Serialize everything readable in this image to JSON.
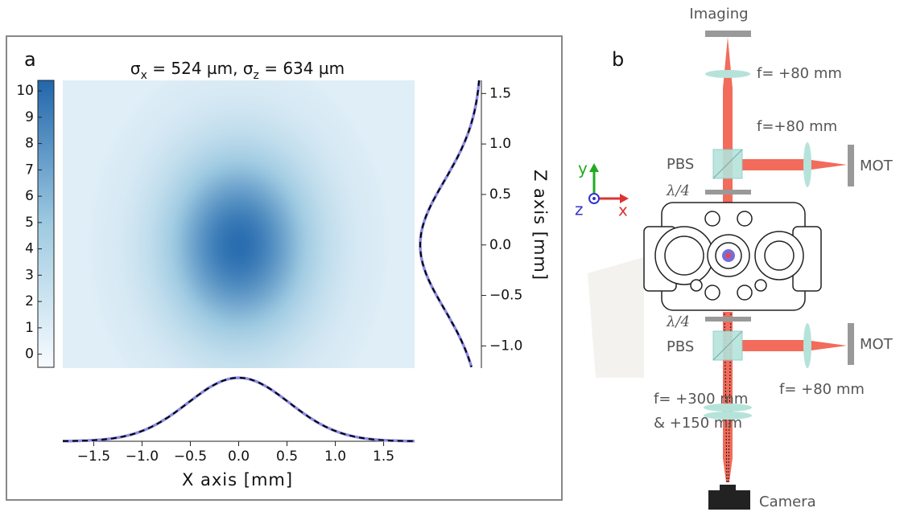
{
  "chart_data": [
    {
      "type": "heatmap",
      "panel_label": "a",
      "title": [
        "σ",
        "x",
        " = 524 µm, σ",
        "z",
        " = 634 µm"
      ],
      "sigma_x": 0.524,
      "sigma_z": 0.634,
      "center_x": 0,
      "center_z": 0,
      "peak": 10,
      "floor": 1,
      "xlim": [
        -1.82,
        1.82
      ],
      "ylim": [
        -1.22,
        1.63
      ],
      "colorbar": {
        "lim": [
          -0.5,
          10.4
        ],
        "ticks": [
          0,
          1,
          2,
          3,
          4,
          5,
          6,
          7,
          8,
          9,
          10
        ],
        "colors": [
          "#f7fbff",
          "#9ecae1",
          "#2166ac"
        ]
      }
    },
    {
      "type": "profile",
      "orientation": "horizontal",
      "xlabel": "X axis [mm]",
      "xlim": [
        -1.82,
        1.82
      ],
      "xticks": [
        {
          "value": -1.5,
          "label": "−1.5"
        },
        {
          "value": -1.0,
          "label": "−1.0"
        },
        {
          "value": -0.5,
          "label": "−0.5"
        },
        {
          "value": 0,
          "label": "0.0"
        },
        0.5,
        {
          "value": 1.0,
          "label": "1.0"
        },
        1.5
      ],
      "color": "#8b8be6",
      "fit_color": "#000000"
    },
    {
      "type": "profile",
      "orientation": "vertical",
      "ylabel": "Z axis [mm]",
      "ylim": [
        -1.22,
        1.63
      ],
      "yticks": [
        {
          "value": -1.0,
          "label": "−1.0"
        },
        {
          "value": -0.5,
          "label": "−0.5"
        },
        {
          "value": 0,
          "label": "0.0"
        },
        0.5,
        {
          "value": 1.0,
          "label": "1.0"
        },
        1.5
      ],
      "color": "#8b8be6",
      "fit_color": "#000000"
    }
  ],
  "diagram": {
    "label": "b",
    "imaging": "Imaging",
    "lens_top": "f= +80 mm",
    "lens_mot_top": "f=+80 mm",
    "pbs_top": "PBS",
    "mot_top": "MOT",
    "waveplate_top": "λ/4",
    "axis_y": "y",
    "axis_z": "z",
    "axis_x": "x",
    "waveplate_bottom": "λ/4",
    "pbs_bottom": "PBS",
    "mot_bottom": "MOT",
    "lens_mot_bottom": "f= +80 mm",
    "lens_camera_1": "f= +300 mm",
    "lens_camera_2": "& +150 mm",
    "camera": "Camera"
  }
}
